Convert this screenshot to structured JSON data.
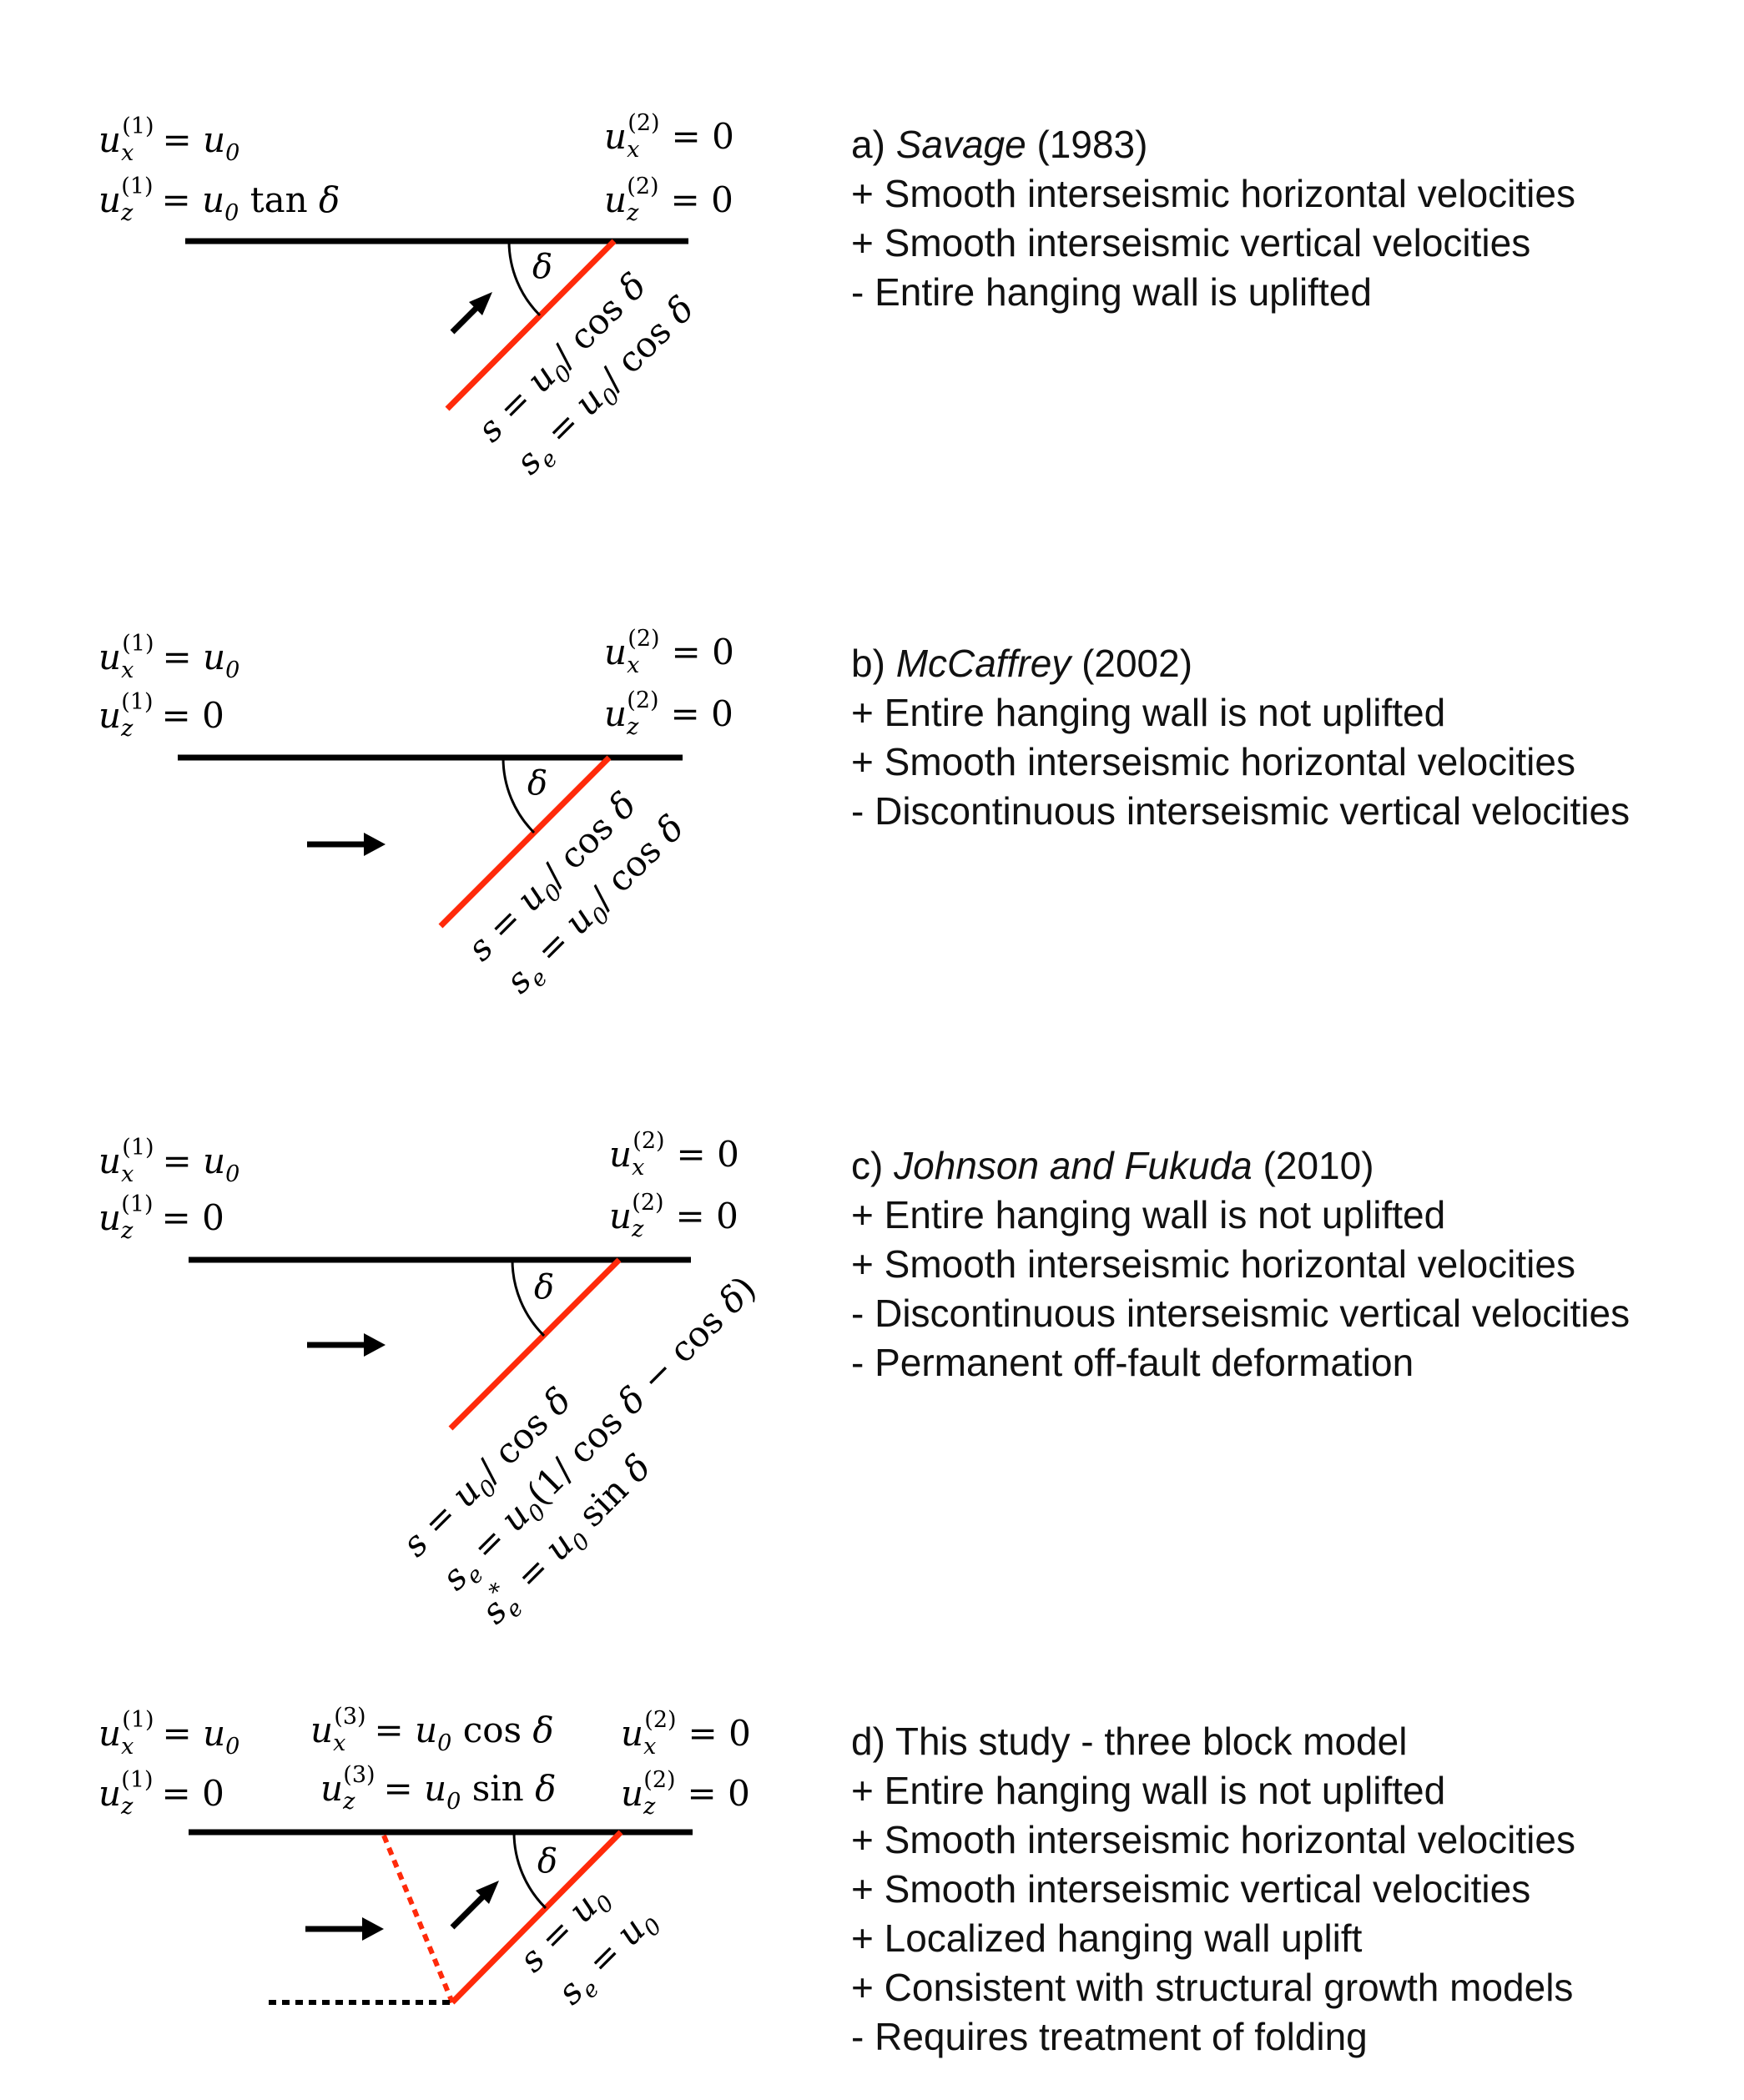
{
  "colors": {
    "fault": "#ff2a0a",
    "surface": "#000000",
    "arrow": "#000000"
  },
  "panels": [
    {
      "id": "a",
      "label": "a)",
      "author": "Savage",
      "year": "(1983)",
      "left_eq": [
        "u_x^(1) = u_0",
        "u_z^(1) = u_0 tan δ"
      ],
      "right_eq": [
        "u_x^(2) = 0",
        "u_z^(2) = 0"
      ],
      "slip_eq": [
        "s = u_0/ cos δ",
        "s_e = u_0/ cos δ"
      ],
      "items": [
        "+ Smooth interseismic horizontal velocities",
        "+ Smooth interseismic vertical velocities",
        "- Entire hanging wall is uplifted"
      ]
    },
    {
      "id": "b",
      "label": "b)",
      "author": "McCaffrey",
      "year": "(2002)",
      "left_eq": [
        "u_x^(1) = u_0",
        "u_z^(1) = 0"
      ],
      "right_eq": [
        "u_x^(2) = 0",
        "u_z^(2) = 0"
      ],
      "slip_eq": [
        "s = u_0/ cos δ",
        "s_e = u_0/ cos δ"
      ],
      "items": [
        "+ Entire hanging wall is not uplifted",
        "+ Smooth interseismic horizontal velocities",
        "- Discontinuous interseismic vertical velocities"
      ]
    },
    {
      "id": "c",
      "label": "c)",
      "author": "Johnson and Fukuda",
      "year": "(2010)",
      "left_eq": [
        "u_x^(1) = u_0",
        "u_z^(1) = 0"
      ],
      "right_eq": [
        "u_x^(2) = 0",
        "u_z^(2) = 0"
      ],
      "slip_eq": [
        "s = u_0/ cos δ",
        "s_e = u_0(1/ cos δ − cos δ)",
        "s_e^* = u_0 sin δ"
      ],
      "items": [
        "+ Entire hanging wall is not uplifted",
        "+ Smooth interseismic horizontal velocities",
        "- Discontinuous interseismic vertical velocities",
        "- Permanent off-fault deformation"
      ]
    },
    {
      "id": "d",
      "label": "d)",
      "author": "",
      "year": "This study - three block model",
      "left_eq": [
        "u_x^(1) = u_0",
        "u_z^(1) = 0"
      ],
      "mid_eq": [
        "u_x^(3) = u_0 cos δ",
        "u_z^(3) = u_0 sin δ"
      ],
      "right_eq": [
        "u_x^(2) = 0",
        "u_z^(2) = 0"
      ],
      "slip_eq": [
        "s = u_0",
        "s_e = u_0"
      ],
      "items": [
        "+ Entire hanging wall is not uplifted",
        "+ Smooth interseismic horizontal velocities",
        "+ Smooth interseismic vertical velocities",
        "+ Localized hanging wall uplift",
        "+ Consistent with structural growth models",
        "- Requires treatment of folding"
      ]
    }
  ]
}
